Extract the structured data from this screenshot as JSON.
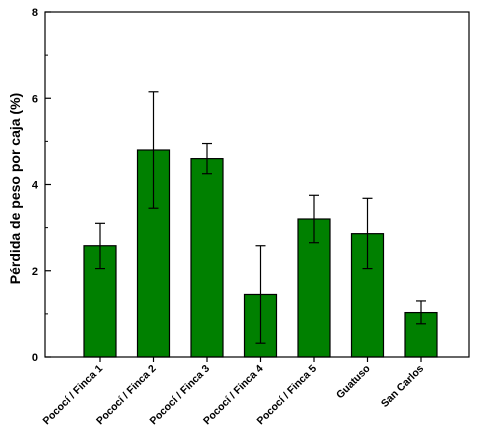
{
  "chart_data": {
    "type": "bar",
    "title": "",
    "xlabel": "",
    "ylabel": "Pérdida de peso por caja (%)",
    "ylim": [
      0,
      8
    ],
    "yticks": [
      0,
      2,
      4,
      6,
      8
    ],
    "grid": false,
    "categories": [
      "Pococí / Finca 1",
      "Pococí / Finca 2",
      "Pococí / Finca 3",
      "Pococí / Finca 4",
      "Pococí / Finca 5",
      "Guatuso",
      "San Carlos"
    ],
    "values": [
      2.58,
      4.8,
      4.6,
      1.45,
      3.2,
      2.86,
      1.03
    ],
    "error_low": [
      2.05,
      3.45,
      4.25,
      0.32,
      2.65,
      2.05,
      0.77
    ],
    "error_high": [
      3.1,
      6.15,
      4.95,
      2.58,
      3.75,
      3.68,
      1.3
    ],
    "bar_color": "#008000",
    "bar_edge_color": "#000000"
  }
}
